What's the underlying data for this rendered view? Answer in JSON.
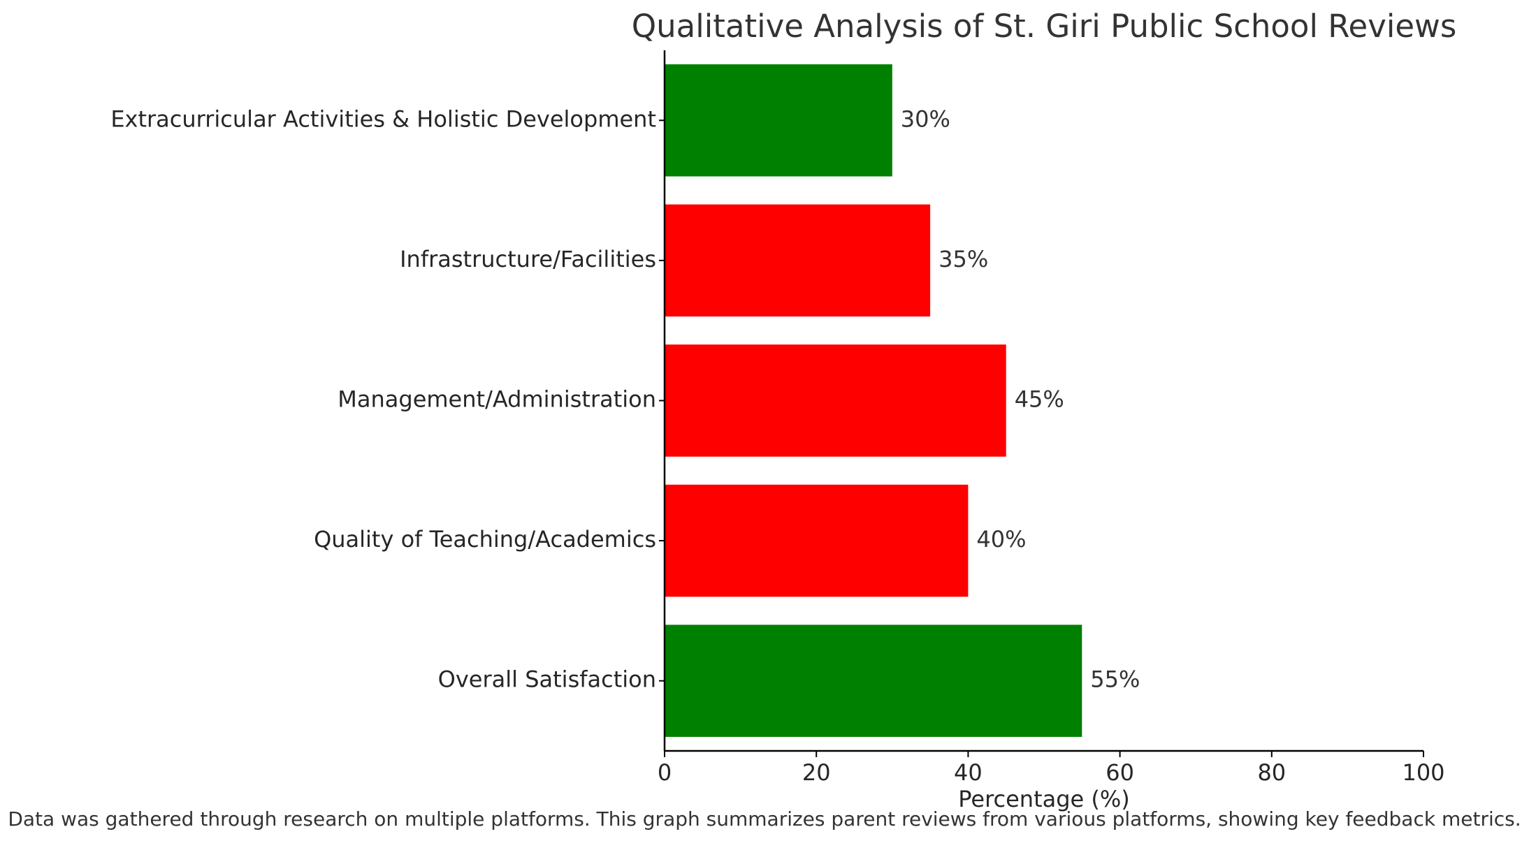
{
  "chart_data": {
    "type": "bar",
    "orientation": "horizontal",
    "title": "Qualitative Analysis of St. Giri Public School Reviews",
    "xlabel": "Percentage (%)",
    "ylabel": "",
    "xlim": [
      0,
      100
    ],
    "xticks": [
      0,
      20,
      40,
      60,
      80,
      100
    ],
    "categories": [
      "Overall Satisfaction",
      "Quality of Teaching/Academics",
      "Management/Administration",
      "Infrastructure/Facilities",
      "Extracurricular Activities & Holistic Development"
    ],
    "values": [
      55,
      40,
      45,
      35,
      30
    ],
    "value_labels": [
      "55%",
      "40%",
      "45%",
      "35%",
      "30%"
    ],
    "bar_colors": [
      "#008000",
      "#ff0000",
      "#ff0000",
      "#ff0000",
      "#008000"
    ],
    "grid": false,
    "footnote": "Data was gathered through research on multiple platforms. This graph summarizes parent reviews from various platforms, showing key feedback metrics."
  }
}
